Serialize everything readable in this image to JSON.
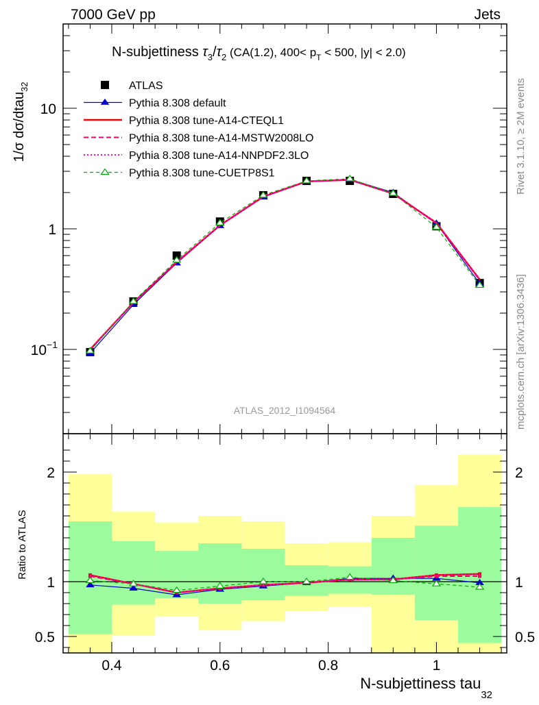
{
  "header": {
    "left": "7000 GeV pp",
    "right": "Jets"
  },
  "side": {
    "rivet": "Rivet 3.1.10, ≥ 2M events",
    "mcplots": "mcplots.cern.ch [arXiv:1306.3436]"
  },
  "chart_data": [
    {
      "type": "line",
      "title": "N-subjettiness τ₃/τ₂ (CA(1.2), 400< p_T < 500, |y| < 2.0)",
      "title_parts": {
        "prefix": "N-subjettiness ",
        "tau": "τ",
        "sub3": "3",
        "slash": "/",
        "sub2": "2",
        "mid": " (CA(1.2), 400< p",
        "subT": "T",
        "end": " < 500, |y| < 2.0)"
      },
      "ylabel": "1/σ dσ/dtau",
      "ylabel_sub": "32",
      "yscale": "log",
      "ylim": [
        0.02,
        50
      ],
      "xlim": [
        0.31,
        1.13
      ],
      "watermark": "ATLAS_2012_I1094564",
      "legend_position": "top-left",
      "yticks": [
        {
          "value": 0.1,
          "base": "10",
          "exp": "−1"
        },
        {
          "value": 1,
          "base": "1",
          "exp": ""
        },
        {
          "value": 10,
          "base": "10",
          "exp": ""
        }
      ],
      "x": [
        0.36,
        0.44,
        0.52,
        0.6,
        0.68,
        0.76,
        0.84,
        0.92,
        1.0,
        1.08
      ],
      "series": [
        {
          "name": "ATLAS",
          "color": "#000000",
          "style": "data",
          "marker": "square",
          "values": [
            0.095,
            0.25,
            0.6,
            1.15,
            1.9,
            2.5,
            2.5,
            1.95,
            1.05,
            0.355
          ]
        },
        {
          "name": "Pythia 8.308 default",
          "color": "#0000cc",
          "style": "solid",
          "marker": "triangle",
          "values": [
            0.093,
            0.235,
            0.52,
            1.06,
            1.83,
            2.47,
            2.57,
            2.0,
            1.11,
            0.35
          ]
        },
        {
          "name": "Pythia 8.308 tune-A14-CTEQL1",
          "color": "#ee0000",
          "style": "solid-thick",
          "marker": "none",
          "values": [
            0.1,
            0.245,
            0.53,
            1.07,
            1.85,
            2.47,
            2.55,
            1.96,
            1.12,
            0.38
          ]
        },
        {
          "name": "Pythia 8.308 tune-A14-MSTW2008LO",
          "color": "#ee0066",
          "style": "dashed",
          "marker": "none",
          "values": [
            0.099,
            0.245,
            0.53,
            1.07,
            1.85,
            2.47,
            2.55,
            1.96,
            1.11,
            0.375
          ]
        },
        {
          "name": "Pythia 8.308 tune-A14-NNPDF2.3LO",
          "color": "#ff00cc",
          "style": "dotted",
          "marker": "none",
          "values": [
            0.1,
            0.245,
            0.53,
            1.07,
            1.85,
            2.47,
            2.55,
            1.96,
            1.12,
            0.38
          ]
        },
        {
          "name": "Pythia 8.308 tune-CUETP8S1",
          "color": "#00aa00",
          "style": "dashed-thin",
          "marker": "open-triangle",
          "values": [
            0.097,
            0.25,
            0.55,
            1.12,
            1.9,
            2.5,
            2.6,
            1.97,
            1.03,
            0.34
          ]
        }
      ]
    },
    {
      "type": "line",
      "ylabel": "Ratio to ATLAS",
      "xlabel": "N-subjettiness tau",
      "xlabel_sub": "32",
      "ylim": [
        0.35,
        2.35
      ],
      "xlim": [
        0.31,
        1.13
      ],
      "reference_line": 1,
      "xticks": [
        {
          "value": 0.4,
          "label": "0.4"
        },
        {
          "value": 0.6,
          "label": "0.6"
        },
        {
          "value": 0.8,
          "label": "0.8"
        },
        {
          "value": 1.0,
          "label": "1"
        }
      ],
      "yticks": [
        {
          "value": 0.5,
          "label": "0.5"
        },
        {
          "value": 1,
          "label": "1"
        },
        {
          "value": 2,
          "label": "2"
        }
      ],
      "bands": {
        "edges": [
          0.32,
          0.4,
          0.48,
          0.56,
          0.64,
          0.72,
          0.8,
          0.88,
          0.96,
          1.04,
          1.12
        ],
        "inner": {
          "color": "#9cfb9c",
          "lo": [
            0.52,
            0.79,
            0.85,
            0.8,
            0.83,
            0.87,
            0.89,
            0.88,
            0.65,
            0.44
          ],
          "hi": [
            1.55,
            1.37,
            1.28,
            1.35,
            1.3,
            1.15,
            1.14,
            1.4,
            1.51,
            1.68
          ]
        },
        "outer": {
          "color": "#ffff9a",
          "lo": [
            0.35,
            0.51,
            0.68,
            0.56,
            0.64,
            0.73,
            0.77,
            0.35,
            0.35,
            0.35
          ],
          "hi": [
            1.98,
            1.64,
            1.54,
            1.6,
            1.55,
            1.35,
            1.36,
            1.6,
            1.88,
            2.16
          ]
        }
      },
      "x": [
        0.36,
        0.44,
        0.52,
        0.6,
        0.68,
        0.76,
        0.84,
        0.92,
        1.0,
        1.08
      ],
      "series": [
        {
          "name": "Pythia 8.308 default",
          "color": "#0000cc",
          "style": "solid",
          "marker": "triangle",
          "values": [
            0.97,
            0.94,
            0.88,
            0.93,
            0.96,
            0.99,
            1.03,
            1.03,
            1.03,
            0.99
          ]
        },
        {
          "name": "Pythia 8.308 tune-A14-CTEQL1",
          "color": "#ee0000",
          "style": "solid-thick",
          "marker": "none",
          "values": [
            1.06,
            0.98,
            0.9,
            0.94,
            0.97,
            0.99,
            1.02,
            1.02,
            1.06,
            1.07
          ]
        },
        {
          "name": "Pythia 8.308 tune-A14-MSTW2008LO",
          "color": "#ee0066",
          "style": "dashed",
          "marker": "none",
          "values": [
            1.05,
            0.98,
            0.9,
            0.94,
            0.97,
            0.99,
            1.02,
            1.02,
            1.05,
            1.05
          ]
        },
        {
          "name": "Pythia 8.308 tune-A14-NNPDF2.3LO",
          "color": "#ff00cc",
          "style": "dotted",
          "marker": "none",
          "values": [
            1.06,
            0.98,
            0.9,
            0.94,
            0.97,
            0.99,
            1.02,
            1.02,
            1.06,
            1.07
          ]
        },
        {
          "name": "Pythia 8.308 tune-CUETP8S1",
          "color": "#00aa00",
          "style": "dashed-thin",
          "marker": "open-triangle",
          "values": [
            1.01,
            0.98,
            0.92,
            0.96,
            1.0,
            1.0,
            1.04,
            1.01,
            0.98,
            0.95
          ]
        }
      ]
    }
  ]
}
